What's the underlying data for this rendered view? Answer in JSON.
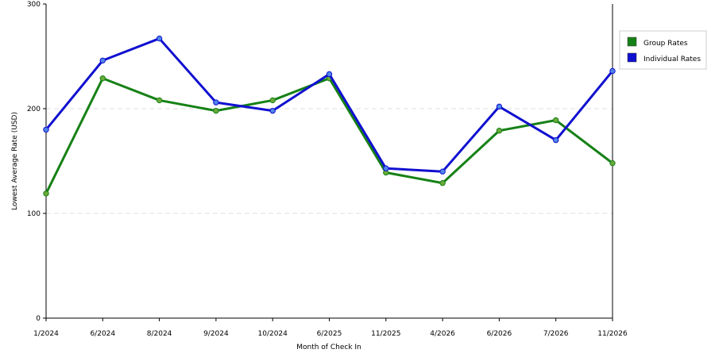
{
  "chart_data": {
    "type": "line",
    "title": "",
    "xlabel": "Month of Check In",
    "ylabel": "Lowest Average Rate (USD)",
    "categories": [
      "1/2024",
      "6/2024",
      "8/2024",
      "9/2024",
      "10/2024",
      "6/2025",
      "11/2025",
      "4/2026",
      "6/2026",
      "7/2026",
      "11/2026"
    ],
    "ylim": [
      0,
      300
    ],
    "yticks": [
      "0",
      "100",
      "200",
      "300"
    ],
    "grid": "horizontal-dashed",
    "legend_position": "right",
    "series": [
      {
        "name": "Group Rates",
        "color": "#168116",
        "marker_color": "#6aaa3a",
        "values": [
          119,
          229,
          208,
          198,
          208,
          229,
          139,
          129,
          179,
          189,
          148
        ]
      },
      {
        "name": "Individual Rates",
        "color": "#1010d0",
        "marker_color": "#4f86e8",
        "values": [
          180,
          246,
          267,
          206,
          198,
          233,
          143,
          140,
          202,
          170,
          236
        ]
      }
    ]
  }
}
